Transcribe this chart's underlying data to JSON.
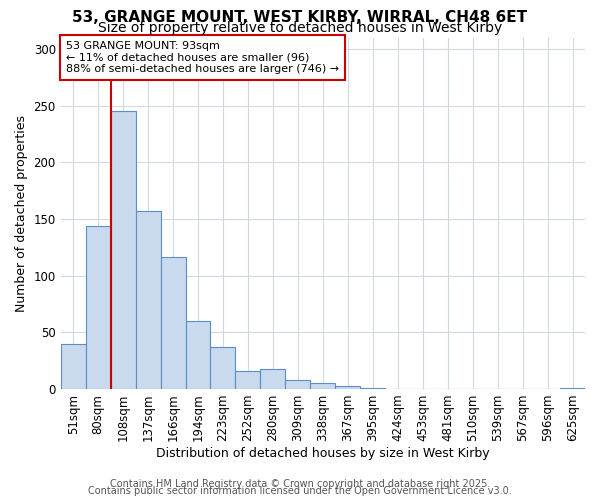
{
  "title1": "53, GRANGE MOUNT, WEST KIRBY, WIRRAL, CH48 6ET",
  "title2": "Size of property relative to detached houses in West Kirby",
  "xlabel": "Distribution of detached houses by size in West Kirby",
  "ylabel": "Number of detached properties",
  "categories": [
    "51sqm",
    "80sqm",
    "108sqm",
    "137sqm",
    "166sqm",
    "194sqm",
    "223sqm",
    "252sqm",
    "280sqm",
    "309sqm",
    "338sqm",
    "367sqm",
    "395sqm",
    "424sqm",
    "453sqm",
    "481sqm",
    "510sqm",
    "539sqm",
    "567sqm",
    "596sqm",
    "625sqm"
  ],
  "values": [
    40,
    144,
    245,
    157,
    116,
    60,
    37,
    16,
    18,
    8,
    5,
    3,
    1,
    0,
    0,
    0,
    0,
    0,
    0,
    0,
    1
  ],
  "bar_color": "#c9d9ee",
  "bar_edge_color": "#5b8ec4",
  "red_line_color": "#cc0000",
  "red_line_index": 1.5,
  "annotation_text": "53 GRANGE MOUNT: 93sqm\n← 11% of detached houses are smaller (96)\n88% of semi-detached houses are larger (746) →",
  "annotation_box_color": "#ffffff",
  "annotation_box_edge": "#cc0000",
  "ylim": [
    0,
    310
  ],
  "yticks": [
    0,
    50,
    100,
    150,
    200,
    250,
    300
  ],
  "footer1": "Contains HM Land Registry data © Crown copyright and database right 2025.",
  "footer2": "Contains public sector information licensed under the Open Government Licence v3.0.",
  "bg_color": "#ffffff",
  "plot_bg_color": "#ffffff",
  "title_fontsize": 11,
  "subtitle_fontsize": 10,
  "axis_label_fontsize": 9,
  "tick_fontsize": 8.5,
  "footer_fontsize": 7,
  "annotation_fontsize": 8
}
